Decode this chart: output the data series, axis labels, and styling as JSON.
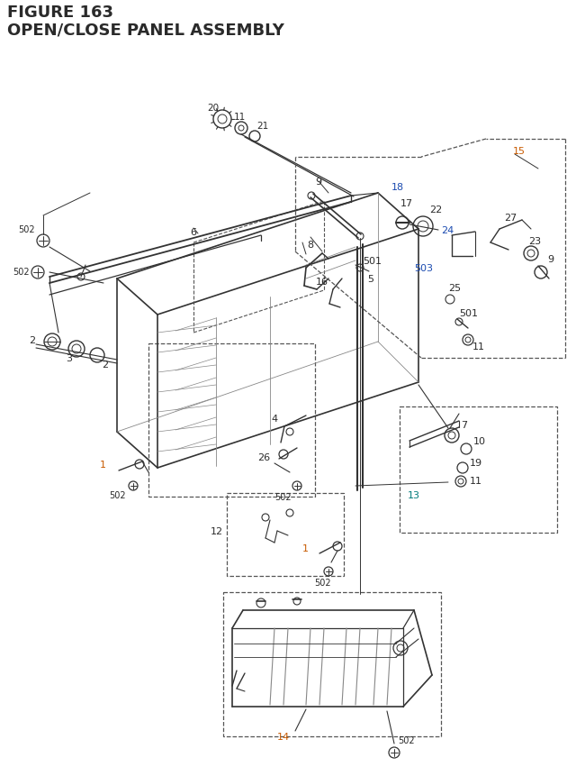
{
  "title_line1": "FIGURE 163",
  "title_line2": "OPEN/CLOSE PANEL ASSEMBLY",
  "bg_color": "#ffffff",
  "lc_black": "#2a2a2a",
  "lc_blue": "#1a4ab0",
  "lc_orange": "#c85a00",
  "lc_teal": "#007a7a",
  "lc_gray": "#555555",
  "lc_dkgray": "#333333",
  "lc_lgray": "#888888",
  "dash_color": "#555555"
}
